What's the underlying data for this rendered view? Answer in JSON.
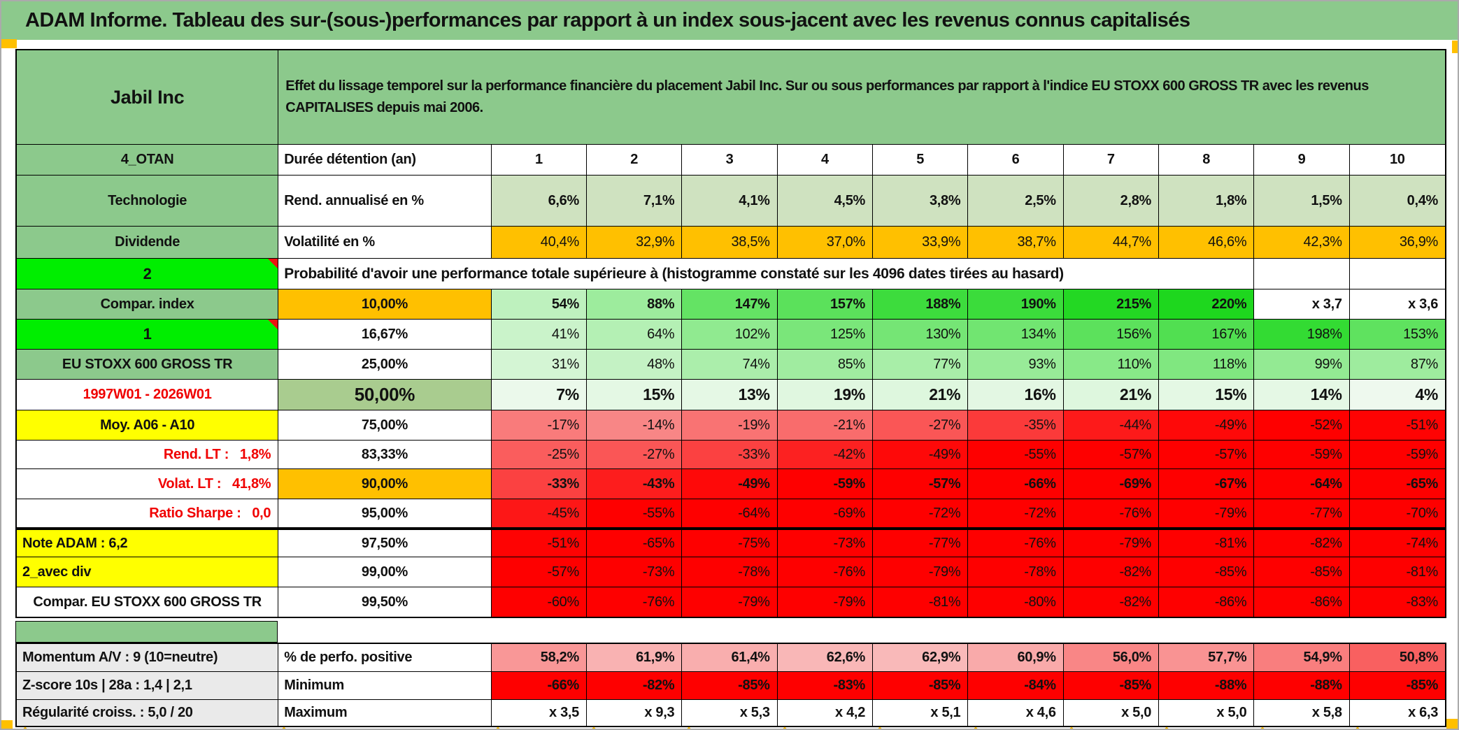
{
  "title": "ADAM Informe. Tableau des sur-(sous-)performances par rapport à un index sous-jacent avec les revenus connus capitalisés",
  "header": {
    "stock": "Jabil Inc",
    "description": "Effet du lissage temporel sur la performance financière du placement Jabil Inc. Sur ou sous performances par rapport à l'indice EU STOXX 600 GROSS TR avec les revenus CAPITALISES depuis mai 2006."
  },
  "meta_rows": [
    {
      "label": "4_OTAN",
      "metric": "Durée détention (an)",
      "values": [
        "1",
        "2",
        "3",
        "4",
        "5",
        "6",
        "7",
        "8",
        "9",
        "10"
      ],
      "value_bg": "white",
      "value_bold": true,
      "value_align": "center"
    },
    {
      "label": "Technologie",
      "metric": "Rend. annualisé en %",
      "values": [
        "6,6%",
        "7,1%",
        "4,1%",
        "4,5%",
        "3,8%",
        "2,5%",
        "2,8%",
        "1,8%",
        "1,5%",
        "0,4%"
      ],
      "value_bg": "sage",
      "value_bold": true,
      "value_align": "right"
    },
    {
      "label": "Dividende",
      "metric": "Volatilité en %",
      "values": [
        "40,4%",
        "32,9%",
        "38,5%",
        "37,0%",
        "33,9%",
        "38,7%",
        "44,7%",
        "46,6%",
        "42,3%",
        "36,9%"
      ],
      "value_bg": "orange",
      "value_bold": false,
      "value_align": "right"
    }
  ],
  "probability": {
    "row_label": "2",
    "note": "Probabilité d'avoir une performance totale supérieure à (histogramme constaté sur les 4096 dates tirées au hasard)",
    "rows": [
      {
        "label": "Compar. index",
        "label_bg": "green",
        "threshold": "10,00%",
        "threshold_bg": "orange",
        "value_bold": true,
        "values": [
          "54%",
          "88%",
          "147%",
          "157%",
          "188%",
          "190%",
          "215%",
          "220%",
          "x 3,7",
          "x 3,6"
        ]
      },
      {
        "label": "1",
        "label_bg": "bright",
        "comment": true,
        "threshold": "16,67%",
        "values": [
          "41%",
          "64%",
          "102%",
          "125%",
          "130%",
          "134%",
          "156%",
          "167%",
          "198%",
          "153%"
        ]
      },
      {
        "label": "EU STOXX 600 GROSS TR",
        "label_bg": "green",
        "threshold": "25,00%",
        "values": [
          "31%",
          "48%",
          "74%",
          "85%",
          "77%",
          "93%",
          "110%",
          "118%",
          "99%",
          "87%"
        ]
      },
      {
        "label": "1997W01 - 2026W01",
        "label_color": "red",
        "threshold": "50,00%",
        "threshold_bg": "olive",
        "big": true,
        "value_bold": true,
        "values": [
          "7%",
          "15%",
          "13%",
          "19%",
          "21%",
          "16%",
          "21%",
          "15%",
          "14%",
          "4%"
        ]
      },
      {
        "label": "Moy. A06 - A10",
        "label_bg": "yellow",
        "threshold": "75,00%",
        "values": [
          "-17%",
          "-14%",
          "-19%",
          "-21%",
          "-27%",
          "-35%",
          "-44%",
          "-49%",
          "-52%",
          "-51%"
        ]
      },
      {
        "label": "Rend. LT :   1,8%",
        "label_color": "red",
        "label_align": "right",
        "threshold": "83,33%",
        "values": [
          "-25%",
          "-27%",
          "-33%",
          "-42%",
          "-49%",
          "-55%",
          "-57%",
          "-57%",
          "-59%",
          "-59%"
        ]
      },
      {
        "label": "Volat. LT :   41,8%",
        "label_color": "red",
        "label_align": "right",
        "threshold": "90,00%",
        "threshold_bg": "orange",
        "value_bold": true,
        "values": [
          "-33%",
          "-43%",
          "-49%",
          "-59%",
          "-57%",
          "-66%",
          "-69%",
          "-67%",
          "-64%",
          "-65%"
        ]
      },
      {
        "label": "Ratio Sharpe :   0,0",
        "label_color": "red",
        "label_align": "right",
        "threshold": "95,00%",
        "values": [
          "-45%",
          "-55%",
          "-64%",
          "-69%",
          "-72%",
          "-72%",
          "-76%",
          "-79%",
          "-77%",
          "-70%"
        ]
      },
      {
        "label": "Note ADAM : 6,2",
        "label_bg": "yellow",
        "label_align": "left",
        "threshold": "97,50%",
        "thick_top": true,
        "values": [
          "-51%",
          "-65%",
          "-75%",
          "-73%",
          "-77%",
          "-76%",
          "-79%",
          "-81%",
          "-82%",
          "-74%"
        ]
      },
      {
        "label": "2_avec div",
        "label_bg": "yellow",
        "label_align": "left",
        "threshold": "99,00%",
        "values": [
          "-57%",
          "-73%",
          "-78%",
          "-76%",
          "-79%",
          "-78%",
          "-82%",
          "-85%",
          "-85%",
          "-81%"
        ]
      },
      {
        "label": "Compar. EU STOXX 600 GROSS TR",
        "threshold": "99,50%",
        "values": [
          "-60%",
          "-76%",
          "-79%",
          "-79%",
          "-81%",
          "-80%",
          "-82%",
          "-86%",
          "-86%",
          "-83%"
        ]
      }
    ]
  },
  "stats_rows": [
    {
      "label": "Momentum A/V : 9 (10=neutre)",
      "metric": "% de perfo. positive",
      "scale": "pink",
      "values": [
        "58,2%",
        "61,9%",
        "61,4%",
        "62,6%",
        "62,9%",
        "60,9%",
        "56,0%",
        "57,7%",
        "54,9%",
        "50,8%"
      ]
    },
    {
      "label": "Z-score 10s | 28a : 1,4 | 2,1",
      "metric": "Minimum",
      "scale": "red",
      "values": [
        "-66%",
        "-82%",
        "-85%",
        "-83%",
        "-85%",
        "-84%",
        "-85%",
        "-88%",
        "-88%",
        "-85%"
      ]
    },
    {
      "label": "Régularité croiss. : 5,0 / 20",
      "metric": "Maximum",
      "scale": "none",
      "values": [
        "x 3,5",
        "x 9,3",
        "x 5,3",
        "x 4,2",
        "x 5,1",
        "x 4,6",
        "x 5,0",
        "x 5,0",
        "x 5,8",
        "x 6,3"
      ]
    }
  ],
  "colors": {
    "title_green": "#8cc98c",
    "bright_green": "#00ee00",
    "orange": "#ffc000",
    "yellow": "#ffff00",
    "olive_green": "#a9cc8f",
    "sage_green": "#cfe2c0",
    "full_red": "#fe0000",
    "label_red": "#f00000",
    "gray_label": "#eaeaea",
    "marker_orange": "#ffc000"
  }
}
